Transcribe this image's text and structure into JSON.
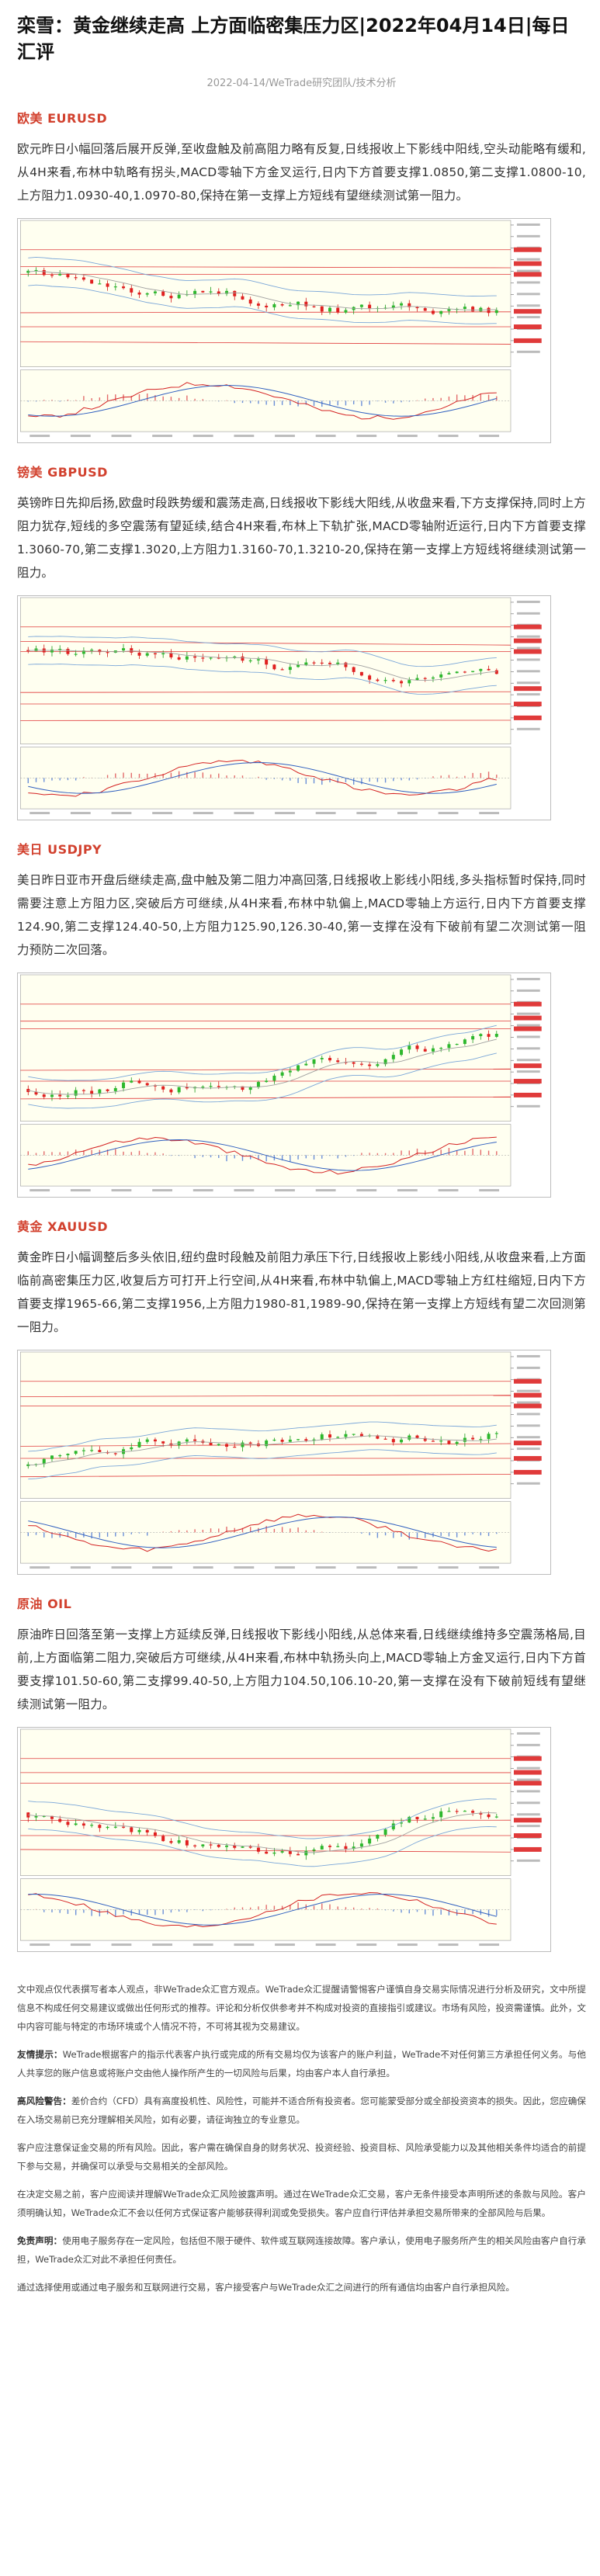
{
  "article": {
    "title": "栾雪：黄金继续走高 上方面临密集压力区|2022年04月14日|每日汇评",
    "meta": "2022-04-14/WeTrade研究团队/技术分析"
  },
  "sections": [
    {
      "title": "欧美 EURUSD",
      "text": "欧元昨日小幅回落后展开反弹,至收盘触及前高阻力略有反复,日线报收上下影线中阳线,空头动能略有缓和,从4H来看,布林中轨略有拐头,MACD零轴下方金叉运行,日内下方首要支撑1.0850,第二支撑1.0800-10,上方阻力1.0930-40,1.0970-80,保持在第一支撑上方短线有望继续测试第一阻力。",
      "chart_seed": 11,
      "trend": "down"
    },
    {
      "title": "镑美 GBPUSD",
      "text": "英镑昨日先抑后扬,欧盘时段跌势缓和震荡走高,日线报收下影线大阳线,从收盘来看,下方支撑保持,同时上方阻力犹存,短线的多空震荡有望延续,结合4H来看,布林上下轨扩张,MACD零轴附近运行,日内下方首要支撑1.3060-70,第二支撑1.3020,上方阻力1.3160-70,1.3210-20,保持在第一支撑上方短线将继续测试第一阻力。",
      "chart_seed": 23,
      "trend": "down"
    },
    {
      "title": "美日 USDJPY",
      "text": "美日昨日亚市开盘后继续走高,盘中触及第二阻力冲高回落,日线报收上影线小阳线,多头指标暂时保持,同时需要注意上方阻力区,突破后方可继续,从4H来看,布林中轨偏上,MACD零轴上方运行,日内下方首要支撑124.90,第二支撑124.40-50,上方阻力125.90,126.30-40,第一支撑在没有下破前有望二次测试第一阻力预防二次回落。",
      "chart_seed": 37,
      "trend": "up"
    },
    {
      "title": "黄金 XAUUSD",
      "text": "黄金昨日小幅调整后多头依旧,纽约盘时段触及前阻力承压下行,日线报收上影线小阳线,从收盘来看,上方面临前高密集压力区,收复后方可打开上行空间,从4H来看,布林中轨偏上,MACD零轴上方红柱缩短,日内下方首要支撑1965-66,第二支撑1956,上方阻力1980-81,1989-90,保持在第一支撑上方短线有望二次回测第一阻力。",
      "chart_seed": 53,
      "trend": "up"
    },
    {
      "title": "原油 OIL",
      "text": "原油昨日回落至第一支撑上方延续反弹,日线报收下影线小阳线,从总体来看,日线继续维持多空震荡格局,目前,上方面临第二阻力,突破后方可继续,从4H来看,布林中轨扬头向上,MACD零轴上方金叉运行,日内下方首要支撑101.50-60,第二支撑99.40-50,上方阻力104.50,106.10-20,第一支撑在没有下破前短线有望继续测试第一阻力。",
      "chart_seed": 71,
      "trend": "updown"
    }
  ],
  "disclaimer": [
    {
      "label": "",
      "text": "文中观点仅代表撰写者本人观点，非WeTrade众汇官方观点。WeTrade众汇提醒请警惕客户谨慎自身交易实际情况进行分析及研究，文中所提信息不构成任何交易建议或做出任何形式的推荐。评论和分析仅供参考并不构成对投资的直接指引或建议。市场有风险，投资需谨慎。此外，文中内容可能与特定的市场环境或个人情况不符，不可将其视为交易建议。"
    },
    {
      "label": "友情提示：",
      "text": "WeTrade根据客户的指示代表客户执行或完成的所有交易均仅为该客户的账户利益，WeTrade不对任何第三方承担任何义务。与他人共享您的账户信息或将账户交由他人操作所产生的一切风险与后果，均由客户本人自行承担。"
    },
    {
      "label": "高风险警告：",
      "text": "差价合约（CFD）具有高度投机性、风险性，可能并不适合所有投资者。您可能蒙受部分或全部投资资本的损失。因此，您应确保在入场交易前已充分理解相关风险，如有必要，请征询独立的专业意见。"
    },
    {
      "label": "",
      "text": "客户应注意保证金交易的所有风险。因此，客户需在确保自身的财务状况、投资经验、投资目标、风险承受能力以及其他相关条件均适合的前提下参与交易，并确保可以承受与交易相关的全部风险。"
    },
    {
      "label": "",
      "text": "在决定交易之前，客户应阅读并理解WeTrade众汇风险披露声明。通过在WeTrade众汇交易，客户无条件接受本声明所述的条款与风险。客户须明确认知，WeTrade众汇不会以任何方式保证客户能够获得利润或免受损失。客户应自行评估并承担交易所带来的全部风险与后果。"
    },
    {
      "label": "免责声明：",
      "text": "使用电子服务存在一定风险，包括但不限于硬件、软件或互联网连接故障。客户承认，使用电子服务所产生的相关风险由客户自行承担，WeTrade众汇对此不承担任何责任。"
    },
    {
      "label": "",
      "text": "通过选择使用或通过电子服务和互联网进行交易，客户接受客户与WeTrade众汇之间进行的所有通信均由客户自行承担风险。"
    }
  ]
}
